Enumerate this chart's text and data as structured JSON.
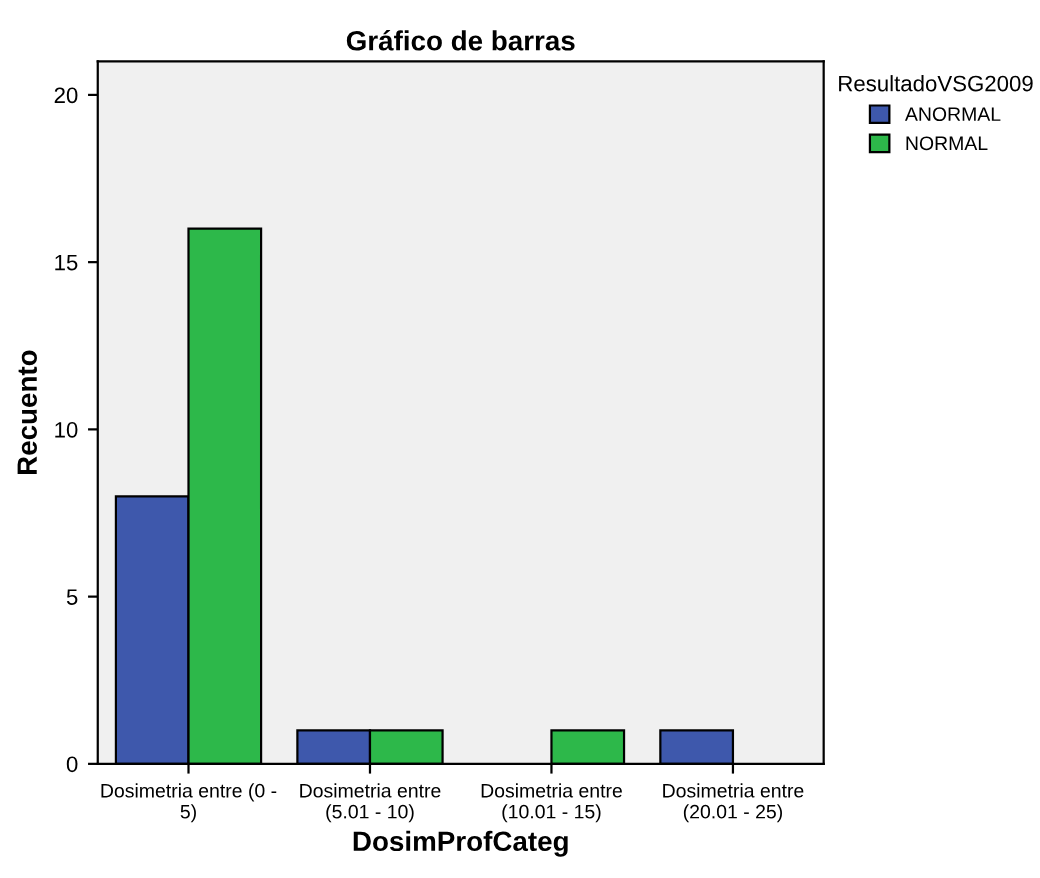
{
  "chart_data": {
    "type": "bar",
    "title": "Gráfico de barras",
    "xlabel": "DosimProfCateg",
    "ylabel": "Recuento",
    "legend_title": "ResultadoVSG2009",
    "categories": [
      "Dosimetria entre (0 -\n5)",
      "Dosimetria entre\n(5.01 - 10)",
      "Dosimetria entre\n(10.01 - 15)",
      "Dosimetria entre\n(20.01 - 25)"
    ],
    "series": [
      {
        "name": "ANORMAL",
        "color": "#3e58ac",
        "values": [
          8,
          1,
          0,
          1
        ]
      },
      {
        "name": "NORMAL",
        "color": "#2db84a",
        "values": [
          16,
          1,
          1,
          0
        ]
      }
    ],
    "ylim": [
      0,
      21
    ],
    "yticks": [
      0,
      5,
      10,
      15,
      20
    ],
    "grid": false,
    "legend": "top right"
  }
}
